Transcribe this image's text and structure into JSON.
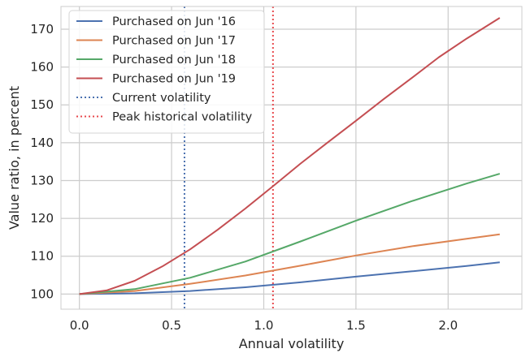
{
  "chart_data": {
    "type": "line",
    "xlabel": "Annual volatility",
    "ylabel": "Value ratio, in percent",
    "xlim": [
      -0.1,
      2.4
    ],
    "ylim": [
      96,
      176
    ],
    "xticks": [
      "0.0",
      "0.5",
      "1.0",
      "1.5",
      "2.0"
    ],
    "yticks": [
      "100",
      "110",
      "120",
      "130",
      "140",
      "150",
      "160",
      "170"
    ],
    "grid": true,
    "legend_position": "top-left",
    "series": [
      {
        "name": "Purchased on Jun '16",
        "color": "#4c72b0",
        "x": [
          0.0,
          0.3,
          0.6,
          0.9,
          1.2,
          1.5,
          1.8,
          2.1,
          2.28
        ],
        "y": [
          100.0,
          100.2,
          100.8,
          101.8,
          103.1,
          104.6,
          106.0,
          107.4,
          108.4
        ]
      },
      {
        "name": "Purchased on Jun '17",
        "color": "#dd8452",
        "x": [
          0.0,
          0.3,
          0.6,
          0.9,
          1.2,
          1.5,
          1.8,
          2.1,
          2.28
        ],
        "y": [
          100.0,
          100.8,
          102.7,
          104.9,
          107.5,
          110.2,
          112.6,
          114.6,
          115.8
        ]
      },
      {
        "name": "Purchased on Jun '18",
        "color": "#55a868",
        "x": [
          0.0,
          0.3,
          0.6,
          0.9,
          1.2,
          1.5,
          1.8,
          2.1,
          2.28
        ],
        "y": [
          100.0,
          101.3,
          104.3,
          108.6,
          113.9,
          119.4,
          124.5,
          129.2,
          131.8
        ]
      },
      {
        "name": "Purchased on Jun '19",
        "color": "#c44e52",
        "x": [
          0.0,
          0.15,
          0.3,
          0.45,
          0.6,
          0.75,
          0.9,
          1.05,
          1.2,
          1.35,
          1.5,
          1.65,
          1.8,
          1.95,
          2.1,
          2.28
        ],
        "y": [
          100.0,
          101.0,
          103.5,
          107.3,
          111.8,
          117.0,
          122.6,
          128.5,
          134.5,
          140.2,
          145.8,
          151.5,
          157.0,
          162.6,
          167.5,
          173.0
        ]
      }
    ],
    "vlines": [
      {
        "name": "Current volatility",
        "x": 0.57,
        "color": "#4c72b0",
        "style": "dotted"
      },
      {
        "name": "Peak historical volatility",
        "x": 1.05,
        "color": "#e8494d",
        "style": "dotted"
      }
    ]
  }
}
